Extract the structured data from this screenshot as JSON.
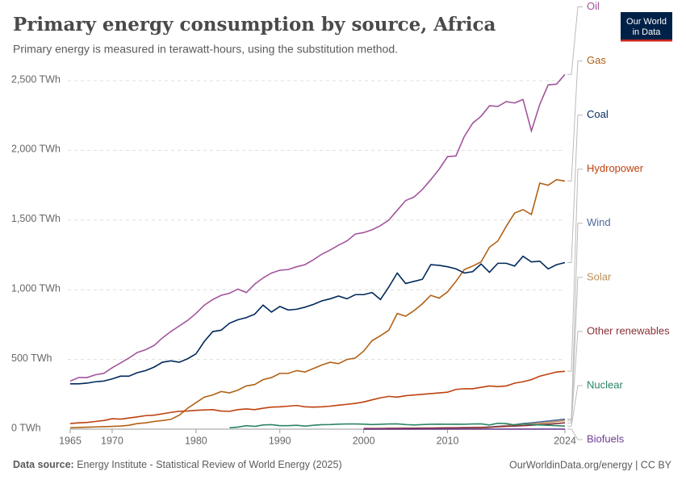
{
  "chart_data": {
    "type": "line",
    "title": "Primary energy consumption by source, Africa",
    "subtitle": "Primary energy is measured in terawatt-hours, using the substitution method.",
    "logo": [
      "Our World",
      "in Data"
    ],
    "source_label": "Data source:",
    "source": "Energy Institute - Statistical Review of World Energy (2025)",
    "credit": "OurWorldinData.org/energy | CC BY",
    "x": [
      1965,
      1966,
      1967,
      1968,
      1969,
      1970,
      1971,
      1972,
      1973,
      1974,
      1975,
      1976,
      1977,
      1978,
      1979,
      1980,
      1981,
      1982,
      1983,
      1984,
      1985,
      1986,
      1987,
      1988,
      1989,
      1990,
      1991,
      1992,
      1993,
      1994,
      1995,
      1996,
      1997,
      1998,
      1999,
      2000,
      2001,
      2002,
      2003,
      2004,
      2005,
      2006,
      2007,
      2008,
      2009,
      2010,
      2011,
      2012,
      2013,
      2014,
      2015,
      2016,
      2017,
      2018,
      2019,
      2020,
      2021,
      2022,
      2023,
      2024
    ],
    "xlim": [
      1965,
      2024
    ],
    "xticks": [
      1965,
      1970,
      1980,
      1990,
      2000,
      2010,
      2024
    ],
    "ylim": [
      0,
      2500
    ],
    "yticks": [
      {
        "value": 0,
        "label": "0 TWh"
      },
      {
        "value": 500,
        "label": "500 TWh"
      },
      {
        "value": 1000,
        "label": "1,000 TWh"
      },
      {
        "value": 1500,
        "label": "1,500 TWh"
      },
      {
        "value": 2000,
        "label": "2,000 TWh"
      },
      {
        "value": 2500,
        "label": "2,500 TWh"
      }
    ],
    "grid": true,
    "series": [
      {
        "name": "Oil",
        "color": "#a2559c",
        "values": [
          345,
          370,
          370,
          390,
          400,
          440,
          475,
          510,
          550,
          570,
          600,
          655,
          700,
          740,
          780,
          830,
          890,
          930,
          960,
          975,
          1005,
          980,
          1040,
          1085,
          1120,
          1140,
          1145,
          1165,
          1180,
          1215,
          1255,
          1285,
          1320,
          1350,
          1400,
          1410,
          1430,
          1460,
          1500,
          1570,
          1640,
          1665,
          1720,
          1790,
          1865,
          1955,
          1960,
          2100,
          2195,
          2245,
          2320,
          2315,
          2350,
          2340,
          2365,
          2140,
          2330,
          2470,
          2475,
          2545
        ]
      },
      {
        "name": "Gas",
        "color": "#b16214",
        "values": [
          10,
          12,
          14,
          16,
          18,
          20,
          22,
          28,
          40,
          45,
          55,
          62,
          70,
          100,
          150,
          190,
          230,
          245,
          270,
          260,
          280,
          310,
          320,
          355,
          370,
          400,
          400,
          420,
          410,
          435,
          460,
          480,
          470,
          500,
          510,
          560,
          635,
          670,
          710,
          830,
          810,
          850,
          900,
          960,
          940,
          985,
          1060,
          1145,
          1170,
          1200,
          1305,
          1350,
          1455,
          1550,
          1575,
          1540,
          1765,
          1750,
          1790,
          1780
        ]
      },
      {
        "name": "Coal",
        "color": "#00295b",
        "values": [
          325,
          325,
          330,
          340,
          345,
          360,
          380,
          380,
          405,
          420,
          445,
          480,
          490,
          480,
          505,
          540,
          630,
          700,
          710,
          760,
          785,
          800,
          825,
          890,
          840,
          880,
          855,
          860,
          875,
          895,
          920,
          935,
          955,
          935,
          965,
          965,
          980,
          930,
          1020,
          1120,
          1045,
          1060,
          1075,
          1180,
          1175,
          1165,
          1150,
          1120,
          1130,
          1185,
          1125,
          1190,
          1190,
          1170,
          1240,
          1200,
          1205,
          1150,
          1180,
          1195
        ]
      },
      {
        "name": "Hydropower",
        "color": "#be410e",
        "values": [
          40,
          45,
          48,
          55,
          62,
          75,
          72,
          80,
          88,
          97,
          100,
          110,
          120,
          128,
          130,
          135,
          138,
          140,
          130,
          128,
          140,
          145,
          140,
          150,
          158,
          160,
          165,
          170,
          160,
          158,
          160,
          165,
          172,
          178,
          185,
          195,
          210,
          225,
          235,
          230,
          240,
          245,
          250,
          255,
          260,
          265,
          285,
          290,
          290,
          300,
          310,
          305,
          310,
          330,
          340,
          355,
          380,
          395,
          410,
          415
        ]
      },
      {
        "name": "Wind",
        "color": "#4c6a9c",
        "values": [
          null,
          null,
          null,
          null,
          null,
          null,
          null,
          null,
          null,
          null,
          null,
          null,
          null,
          null,
          null,
          null,
          null,
          null,
          null,
          null,
          null,
          null,
          null,
          null,
          null,
          null,
          null,
          null,
          null,
          null,
          null,
          null,
          null,
          null,
          null,
          0.5,
          0.6,
          0.7,
          0.8,
          1,
          1.5,
          2,
          2.5,
          3,
          3.5,
          4,
          5,
          6,
          8,
          10,
          15,
          20,
          26,
          32,
          40,
          45,
          52,
          58,
          65,
          72
        ]
      },
      {
        "name": "Solar",
        "color": "#bc8e5a",
        "values": [
          null,
          null,
          null,
          null,
          null,
          null,
          null,
          null,
          null,
          null,
          null,
          null,
          null,
          null,
          null,
          null,
          null,
          null,
          null,
          null,
          null,
          null,
          null,
          null,
          null,
          null,
          null,
          null,
          null,
          null,
          null,
          null,
          null,
          null,
          null,
          0.1,
          0.1,
          0.1,
          0.1,
          0.2,
          0.2,
          0.3,
          0.3,
          0.4,
          0.5,
          0.7,
          1,
          2,
          4,
          7,
          12,
          18,
          24,
          30,
          35,
          38,
          42,
          48,
          55,
          62
        ]
      },
      {
        "name": "Other renewables",
        "color": "#883039",
        "values": [
          null,
          null,
          null,
          null,
          null,
          null,
          null,
          null,
          null,
          null,
          null,
          null,
          null,
          null,
          null,
          null,
          null,
          null,
          null,
          null,
          null,
          null,
          null,
          null,
          null,
          null,
          null,
          null,
          null,
          null,
          null,
          null,
          null,
          null,
          null,
          5,
          5,
          5,
          6,
          6,
          7,
          7,
          8,
          8,
          9,
          10,
          10,
          11,
          12,
          13,
          15,
          17,
          20,
          22,
          25,
          28,
          32,
          36,
          40,
          45
        ]
      },
      {
        "name": "Nuclear",
        "color": "#2c8465",
        "values": [
          null,
          null,
          null,
          null,
          null,
          null,
          null,
          null,
          null,
          null,
          null,
          null,
          null,
          null,
          null,
          null,
          null,
          null,
          null,
          10,
          15,
          25,
          20,
          30,
          32,
          25,
          25,
          28,
          22,
          28,
          32,
          33,
          36,
          37,
          37,
          36,
          33,
          35,
          37,
          38,
          33,
          30,
          33,
          35,
          36,
          35,
          36,
          35,
          37,
          38,
          30,
          42,
          40,
          30,
          38,
          32,
          30,
          28,
          25,
          22
        ]
      },
      {
        "name": "Biofuels",
        "color": "#6d3e91",
        "values": [
          null,
          null,
          null,
          null,
          null,
          null,
          null,
          null,
          null,
          null,
          null,
          null,
          null,
          null,
          null,
          null,
          null,
          null,
          null,
          null,
          null,
          null,
          null,
          null,
          null,
          null,
          null,
          null,
          null,
          null,
          null,
          null,
          null,
          null,
          null,
          0,
          0,
          0,
          0,
          0,
          0,
          0,
          0,
          0,
          0.1,
          0.1,
          0.1,
          0.2,
          0.2,
          0.3,
          0.3,
          0.3,
          0.4,
          0.4,
          0.5,
          0.5,
          0.5,
          0.6,
          0.6,
          0.6
        ]
      }
    ]
  }
}
